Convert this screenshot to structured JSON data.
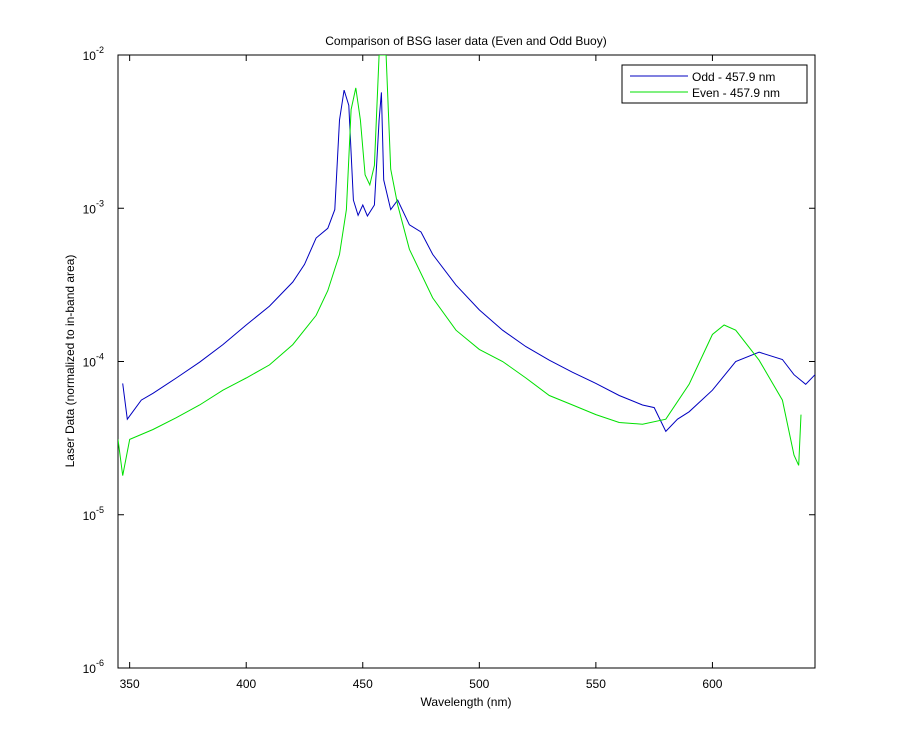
{
  "chart_data": {
    "type": "line",
    "title": "Comparison of BSG laser data (Even and Odd Buoy)",
    "x_label": "Wavelength (nm)",
    "y_label": "Laser Data (normalized to in-band area)",
    "log_y": true,
    "legend": "upper right",
    "xlim": [
      345,
      644
    ],
    "xticks": [
      350,
      400,
      450,
      500,
      550,
      600
    ],
    "ylim": [
      1e-06,
      0.01
    ],
    "yticks": [
      {
        "value": 1e-06,
        "label": "10^-6"
      },
      {
        "value": 1e-05,
        "label": "10^-5"
      },
      {
        "value": 0.0001,
        "label": "10^-4"
      },
      {
        "value": 0.001,
        "label": "10^-3"
      },
      {
        "value": 0.01,
        "label": "10^-2"
      }
    ],
    "series": [
      {
        "name": "Odd - 457.9 nm",
        "color": "#0000c0",
        "x": [
          347,
          349,
          355,
          360,
          370,
          380,
          390,
          400,
          410,
          420,
          425,
          430,
          435,
          438,
          440,
          442,
          444,
          446,
          448,
          450,
          452,
          455,
          457,
          458,
          459,
          462,
          465,
          470,
          475,
          480,
          490,
          500,
          510,
          520,
          530,
          540,
          550,
          560,
          570,
          575,
          580,
          585,
          590,
          600,
          610,
          620,
          630,
          635,
          640,
          644
        ],
        "values": [
          7.2e-05,
          4.2e-05,
          5.6e-05,
          6.2e-05,
          7.8e-05,
          9.9e-05,
          0.000129,
          0.000173,
          0.00023,
          0.00033,
          0.00043,
          0.00064,
          0.00074,
          0.00098,
          0.00376,
          0.0059,
          0.0047,
          0.00113,
          0.0009,
          0.00105,
          0.00089,
          0.00105,
          0.00376,
          0.0057,
          0.00153,
          0.00098,
          0.00113,
          0.00078,
          0.0007,
          0.0005,
          0.000315,
          0.000217,
          0.00016,
          0.000125,
          0.000102,
          8.5e-05,
          7.2e-05,
          6e-05,
          5.2e-05,
          5e-05,
          3.5e-05,
          4.2e-05,
          4.7e-05,
          6.5e-05,
          0.0001,
          0.000115,
          0.000103,
          8.2e-05,
          7.1e-05,
          8.2e-05
        ]
      },
      {
        "name": "Even - 457.9 nm",
        "color": "#00e000",
        "x": [
          345,
          347,
          350,
          360,
          370,
          380,
          390,
          400,
          410,
          420,
          430,
          435,
          440,
          443,
          445,
          447,
          449,
          451,
          453,
          455,
          457,
          460,
          462,
          465,
          470,
          480,
          490,
          500,
          510,
          520,
          530,
          540,
          550,
          560,
          570,
          580,
          590,
          600,
          605,
          610,
          620,
          630,
          635,
          637,
          638
        ],
        "values": [
          3.1e-05,
          1.8e-05,
          3.1e-05,
          3.6e-05,
          4.3e-05,
          5.2e-05,
          6.5e-05,
          7.8e-05,
          9.5e-05,
          0.000129,
          0.0002,
          0.00029,
          0.0005,
          0.00098,
          0.0044,
          0.0061,
          0.00376,
          0.00165,
          0.00142,
          0.0019,
          0.01,
          0.01,
          0.0018,
          0.00105,
          0.00054,
          0.00026,
          0.00016,
          0.00012,
          0.0001,
          7.8e-05,
          6e-05,
          5.2e-05,
          4.5e-05,
          4e-05,
          3.9e-05,
          4.2e-05,
          7.1e-05,
          0.00015,
          0.000173,
          0.00016,
          0.000102,
          5.6e-05,
          2.45e-05,
          2.1e-05,
          4.5e-05
        ]
      }
    ]
  }
}
